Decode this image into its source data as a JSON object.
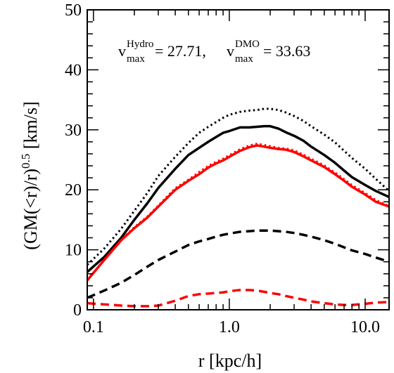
{
  "chart_data": {
    "type": "line",
    "title": "",
    "xlabel": "r [kpc/h]",
    "ylabel_main": "(GM(<r)/r)",
    "ylabel_sup": "0.5",
    "ylabel_unit": " [km/s]",
    "xscale": "log",
    "xlim": [
      0.09,
      15
    ],
    "ylim": [
      0,
      50
    ],
    "x_ticks": [
      0.1,
      1.0,
      10.0
    ],
    "x_tick_labels": [
      "0.1",
      "1.0",
      "10.0"
    ],
    "y_ticks": [
      0,
      10,
      20,
      30,
      40,
      50
    ],
    "y_tick_labels": [
      "0",
      "10",
      "20",
      "30",
      "40",
      "50"
    ],
    "grid": false,
    "annotation": {
      "v1": "v",
      "v1_sup": "Hydro",
      "v1_sub": "max",
      "v1_value": "= 27.71,",
      "v2": "v",
      "v2_sup": "DMO",
      "v2_sub": "max",
      "v2_value": "= 33.63"
    },
    "series": [
      {
        "color": "#000000",
        "style": "dotted",
        "width": 3,
        "x": [
          0.09,
          0.12,
          0.16,
          0.2,
          0.25,
          0.3,
          0.4,
          0.5,
          0.6,
          0.7,
          0.8,
          0.9,
          1.0,
          1.2,
          1.4,
          1.6,
          1.8,
          2.0,
          2.3,
          2.6,
          3.0,
          3.5,
          4.0,
          5.0,
          6.0,
          7.0,
          8.0,
          10.0,
          12.0,
          15.0
        ],
        "y": [
          7.5,
          10.2,
          13.5,
          16.5,
          19.5,
          22.3,
          25.5,
          27.8,
          29.5,
          30.5,
          31.3,
          32.0,
          32.5,
          33.0,
          33.2,
          33.3,
          33.5,
          33.5,
          33.3,
          32.9,
          32.3,
          31.5,
          30.6,
          29.2,
          27.9,
          26.5,
          25.3,
          23.5,
          21.8,
          19.8
        ]
      },
      {
        "color": "#000000",
        "style": "solid",
        "width": 3.5,
        "x": [
          0.09,
          0.12,
          0.16,
          0.2,
          0.25,
          0.3,
          0.4,
          0.5,
          0.6,
          0.7,
          0.8,
          0.9,
          1.0,
          1.2,
          1.4,
          1.6,
          1.8,
          2.0,
          2.3,
          2.6,
          3.0,
          3.5,
          4.0,
          5.0,
          6.0,
          7.0,
          8.0,
          10.0,
          12.0,
          15.0
        ],
        "y": [
          6.3,
          8.8,
          12.0,
          15.0,
          17.8,
          20.3,
          23.5,
          25.8,
          27.0,
          28.0,
          28.8,
          29.5,
          29.8,
          30.4,
          30.4,
          30.5,
          30.6,
          30.6,
          30.2,
          29.6,
          29.0,
          28.2,
          27.2,
          25.8,
          24.5,
          23.2,
          22.1,
          20.8,
          19.8,
          18.8
        ]
      },
      {
        "color": "#000000",
        "style": "dashed",
        "width": 3.5,
        "x": [
          0.09,
          0.12,
          0.16,
          0.2,
          0.25,
          0.3,
          0.4,
          0.5,
          0.6,
          0.7,
          0.8,
          0.9,
          1.0,
          1.2,
          1.4,
          1.6,
          1.8,
          2.0,
          2.3,
          2.6,
          3.0,
          3.5,
          4.0,
          5.0,
          6.0,
          7.0,
          8.0,
          10.0,
          12.0,
          15.0
        ],
        "y": [
          2.0,
          3.2,
          4.5,
          5.8,
          7.2,
          8.3,
          9.7,
          10.8,
          11.4,
          11.8,
          12.2,
          12.5,
          12.7,
          13.0,
          13.1,
          13.2,
          13.2,
          13.2,
          13.1,
          13.0,
          12.8,
          12.5,
          12.2,
          11.6,
          11.0,
          10.4,
          9.9,
          9.3,
          8.7,
          8.0
        ]
      },
      {
        "color": "#ff0000",
        "style": "dotted",
        "width": 2.5,
        "x": [
          0.09,
          0.12,
          0.16,
          0.2,
          0.25,
          0.3,
          0.4,
          0.5,
          0.6,
          0.7,
          0.8,
          0.9,
          1.0,
          1.2,
          1.4,
          1.6,
          1.8,
          2.0,
          2.3,
          2.6,
          3.0,
          3.5,
          4.0,
          5.0,
          6.0,
          7.0,
          8.0,
          10.0,
          12.0,
          15.0
        ],
        "y": [
          5.0,
          8.4,
          11.7,
          13.8,
          15.6,
          17.4,
          20.3,
          21.7,
          23.0,
          24.0,
          24.7,
          25.2,
          25.8,
          26.8,
          27.4,
          27.7,
          27.5,
          27.3,
          27.0,
          26.9,
          26.6,
          25.9,
          25.2,
          24.1,
          22.9,
          21.8,
          20.8,
          19.5,
          18.3,
          17.3
        ]
      },
      {
        "color": "#ff0000",
        "style": "solid",
        "width": 3.5,
        "x": [
          0.09,
          0.12,
          0.16,
          0.2,
          0.25,
          0.3,
          0.4,
          0.5,
          0.6,
          0.7,
          0.8,
          0.9,
          1.0,
          1.2,
          1.4,
          1.6,
          1.8,
          2.0,
          2.3,
          2.6,
          3.0,
          3.5,
          4.0,
          5.0,
          6.0,
          7.0,
          8.0,
          10.0,
          12.0,
          15.0
        ],
        "y": [
          4.9,
          8.3,
          11.6,
          13.6,
          15.4,
          17.2,
          20.0,
          21.5,
          22.6,
          23.7,
          24.4,
          24.9,
          25.5,
          26.5,
          27.1,
          27.4,
          27.2,
          27.0,
          26.8,
          26.7,
          26.3,
          25.6,
          24.9,
          23.8,
          22.6,
          21.5,
          20.5,
          19.2,
          18.0,
          17.2
        ]
      },
      {
        "color": "#ff0000",
        "style": "dashed",
        "width": 3.5,
        "x": [
          0.09,
          0.12,
          0.16,
          0.2,
          0.25,
          0.3,
          0.4,
          0.5,
          0.6,
          0.7,
          0.8,
          0.9,
          1.0,
          1.2,
          1.4,
          1.6,
          1.8,
          2.0,
          2.3,
          2.6,
          3.0,
          3.5,
          4.0,
          5.0,
          6.0,
          7.0,
          8.0,
          10.0,
          12.0,
          15.0
        ],
        "y": [
          1.1,
          0.9,
          0.7,
          0.6,
          0.6,
          0.7,
          1.5,
          2.3,
          2.6,
          2.7,
          2.8,
          2.9,
          3.1,
          3.3,
          3.3,
          3.2,
          3.0,
          2.8,
          2.6,
          2.3,
          2.0,
          1.7,
          1.4,
          1.1,
          0.9,
          0.8,
          0.8,
          1.0,
          1.2,
          1.3
        ]
      }
    ]
  }
}
